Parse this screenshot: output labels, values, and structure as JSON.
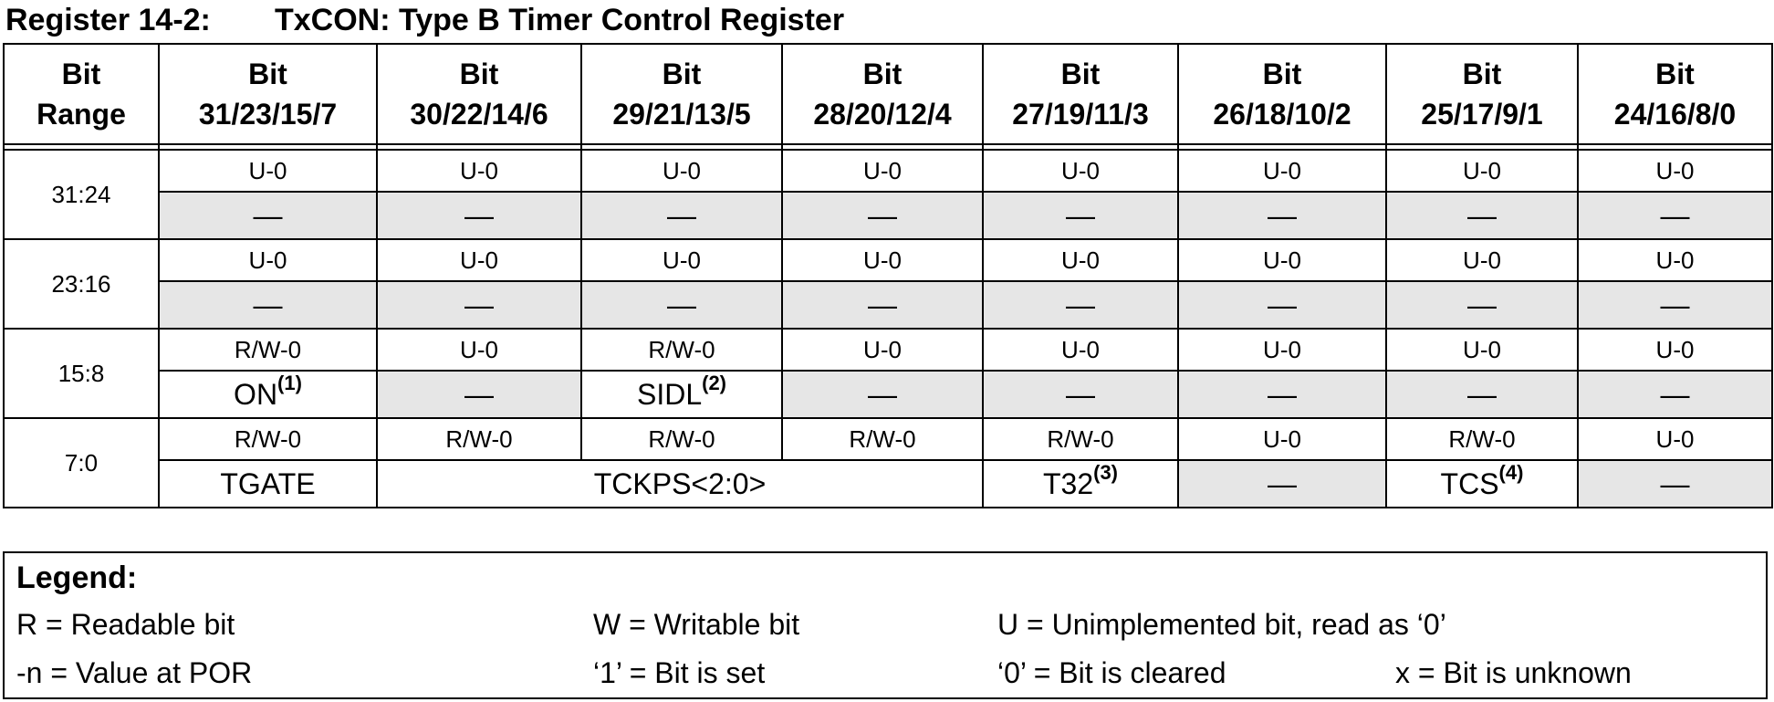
{
  "title": {
    "number": "Register 14-2:",
    "name": "TxCON: Type B Timer Control Register"
  },
  "header": {
    "range_label": [
      "Bit",
      "Range"
    ],
    "bit_labels": [
      [
        "Bit",
        "31/23/15/7"
      ],
      [
        "Bit",
        "30/22/14/6"
      ],
      [
        "Bit",
        "29/21/13/5"
      ],
      [
        "Bit",
        "28/20/12/4"
      ],
      [
        "Bit",
        "27/19/11/3"
      ],
      [
        "Bit",
        "26/18/10/2"
      ],
      [
        "Bit",
        "25/17/9/1"
      ],
      [
        "Bit",
        "24/16/8/0"
      ]
    ]
  },
  "rows": [
    {
      "range": "31:24",
      "attrs": [
        "U-0",
        "U-0",
        "U-0",
        "U-0",
        "U-0",
        "U-0",
        "U-0",
        "U-0"
      ],
      "values": [
        {
          "text": "—",
          "shaded": true,
          "span": 1
        },
        {
          "text": "—",
          "shaded": true,
          "span": 1
        },
        {
          "text": "—",
          "shaded": true,
          "span": 1
        },
        {
          "text": "—",
          "shaded": true,
          "span": 1
        },
        {
          "text": "—",
          "shaded": true,
          "span": 1
        },
        {
          "text": "—",
          "shaded": true,
          "span": 1
        },
        {
          "text": "—",
          "shaded": true,
          "span": 1
        },
        {
          "text": "—",
          "shaded": true,
          "span": 1
        }
      ]
    },
    {
      "range": "23:16",
      "attrs": [
        "U-0",
        "U-0",
        "U-0",
        "U-0",
        "U-0",
        "U-0",
        "U-0",
        "U-0"
      ],
      "values": [
        {
          "text": "—",
          "shaded": true,
          "span": 1
        },
        {
          "text": "—",
          "shaded": true,
          "span": 1
        },
        {
          "text": "—",
          "shaded": true,
          "span": 1
        },
        {
          "text": "—",
          "shaded": true,
          "span": 1
        },
        {
          "text": "—",
          "shaded": true,
          "span": 1
        },
        {
          "text": "—",
          "shaded": true,
          "span": 1
        },
        {
          "text": "—",
          "shaded": true,
          "span": 1
        },
        {
          "text": "—",
          "shaded": true,
          "span": 1
        }
      ]
    },
    {
      "range": "15:8",
      "attrs": [
        "R/W-0",
        "U-0",
        "R/W-0",
        "U-0",
        "U-0",
        "U-0",
        "U-0",
        "U-0"
      ],
      "values": [
        {
          "text": "ON",
          "note": "(1)",
          "shaded": false,
          "span": 1
        },
        {
          "text": "—",
          "shaded": true,
          "span": 1
        },
        {
          "text": "SIDL",
          "note": "(2)",
          "shaded": false,
          "span": 1
        },
        {
          "text": "—",
          "shaded": true,
          "span": 1
        },
        {
          "text": "—",
          "shaded": true,
          "span": 1
        },
        {
          "text": "—",
          "shaded": true,
          "span": 1
        },
        {
          "text": "—",
          "shaded": true,
          "span": 1
        },
        {
          "text": "—",
          "shaded": true,
          "span": 1
        }
      ]
    },
    {
      "range": "7:0",
      "attrs": [
        "R/W-0",
        "R/W-0",
        "R/W-0",
        "R/W-0",
        "R/W-0",
        "U-0",
        "R/W-0",
        "U-0"
      ],
      "values": [
        {
          "text": "TGATE",
          "shaded": false,
          "span": 1
        },
        {
          "text": "TCKPS<2:0>",
          "shaded": false,
          "span": 3
        },
        {
          "text": "T32",
          "note": "(3)",
          "shaded": false,
          "span": 1
        },
        {
          "text": "—",
          "shaded": true,
          "span": 1
        },
        {
          "text": "TCS",
          "note": "(4)",
          "shaded": false,
          "span": 1
        },
        {
          "text": "—",
          "shaded": true,
          "span": 1
        }
      ]
    }
  ],
  "legend": {
    "title": "Legend:",
    "r": "R = Readable bit",
    "w": "W = Writable bit",
    "u": "U = Unimplemented bit, read as ‘0’",
    "n": "-n = Value at POR",
    "set": "‘1’ = Bit is set",
    "cleared": "‘0’ = Bit is cleared",
    "unknown": "x = Bit is unknown"
  }
}
